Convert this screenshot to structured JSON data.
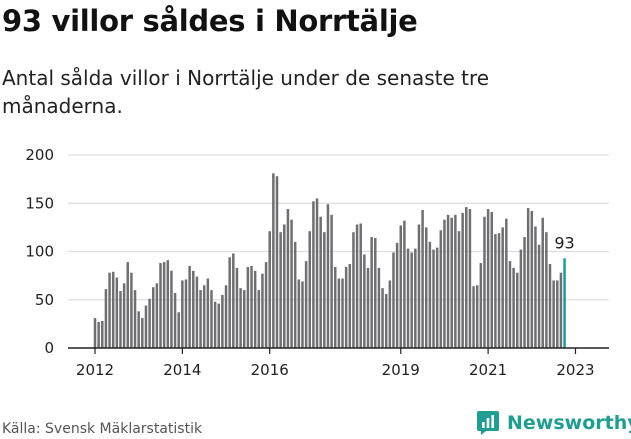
{
  "header": {
    "title": "93 villor såldes i Norrtälje",
    "subtitle": "Antal sålda villor i Norrtälje under de senaste tre månaderna."
  },
  "footer": {
    "source": "Källa: Svensk Mäklarstatistik",
    "brand": "Newsworthy",
    "brand_icon": "newsworthy-logo-icon"
  },
  "colors": {
    "bar": "#6f6f72",
    "highlight": "#1a9e95",
    "grid": "#dddddd",
    "axis": "#222222",
    "text": "#222222"
  },
  "chart_data": {
    "type": "bar",
    "title": "93 villor såldes i Norrtälje",
    "subtitle": "Antal sålda villor i Norrtälje under de senaste tre månaderna.",
    "xlabel": "",
    "ylabel": "",
    "ylim": [
      0,
      200
    ],
    "yticks": [
      0,
      50,
      100,
      150,
      200
    ],
    "grid": true,
    "legend": "none",
    "start": "2012-01",
    "xtick_labels": [
      {
        "label": "2012",
        "index": 0
      },
      {
        "label": "2014",
        "index": 24
      },
      {
        "label": "2016",
        "index": 48
      },
      {
        "label": "2019",
        "index": 84
      },
      {
        "label": "2021",
        "index": 108
      },
      {
        "label": "2023",
        "index": 132
      }
    ],
    "highlight_label": "93",
    "values": [
      31,
      27,
      28,
      61,
      78,
      79,
      73,
      59,
      67,
      89,
      78,
      60,
      38,
      31,
      44,
      51,
      63,
      67,
      88,
      89,
      91,
      80,
      57,
      37,
      70,
      71,
      85,
      80,
      74,
      60,
      65,
      72,
      60,
      48,
      46,
      55,
      65,
      94,
      98,
      83,
      62,
      60,
      84,
      85,
      80,
      60,
      77,
      89,
      121,
      181,
      178,
      120,
      128,
      144,
      133,
      110,
      71,
      69,
      90,
      121,
      152,
      155,
      136,
      120,
      149,
      138,
      84,
      72,
      72,
      84,
      87,
      120,
      128,
      129,
      97,
      83,
      115,
      114,
      83,
      62,
      56,
      70,
      99,
      109,
      127,
      132,
      103,
      99,
      103,
      128,
      143,
      125,
      110,
      102,
      104,
      122,
      133,
      138,
      135,
      138,
      121,
      140,
      146,
      144,
      64,
      65,
      88,
      136,
      144,
      141,
      118,
      119,
      125,
      134,
      90,
      83,
      78,
      102,
      115,
      145,
      142,
      126,
      107,
      135,
      120,
      87,
      70,
      70,
      78,
      93
    ]
  }
}
